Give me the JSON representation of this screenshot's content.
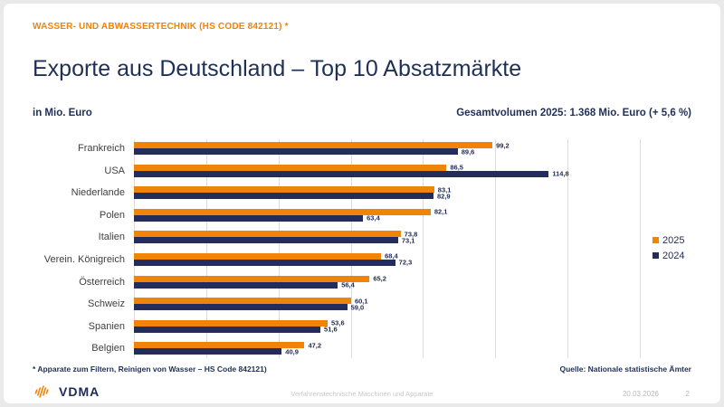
{
  "header": {
    "kicker": "WASSER- UND ABWASSERTECHNIK (HS CODE 842121) *",
    "title": "Exporte aus Deutschland – Top 10 Absatzmärkte",
    "unit_label": "in Mio. Euro",
    "total_label": "Gesamtvolumen 2025: 1.368 Mio. Euro (+ 5,6 %)"
  },
  "chart_data": {
    "type": "bar",
    "orientation": "horizontal",
    "title": "Exporte aus Deutschland – Top 10 Absatzmärkte",
    "xlabel": "Mio. Euro",
    "ylabel": "",
    "xlim": [
      0,
      140
    ],
    "gridline_interval": 20,
    "grid": true,
    "legend_position": "right",
    "categories": [
      "Frankreich",
      "USA",
      "Niederlande",
      "Polen",
      "Italien",
      "Verein. Königreich",
      "Österreich",
      "Schweiz",
      "Spanien",
      "Belgien"
    ],
    "series": [
      {
        "name": "2025",
        "color": "#F08408",
        "values": [
          99.2,
          86.5,
          83.1,
          82.1,
          73.8,
          68.4,
          65.2,
          60.1,
          53.6,
          47.2
        ],
        "labels": [
          "99,2",
          "86,5",
          "83,1",
          "82,1",
          "73,8",
          "68,4",
          "65,2",
          "60,1",
          "53,6",
          "47,2"
        ]
      },
      {
        "name": "2024",
        "color": "#232D5B",
        "values": [
          89.6,
          114.8,
          82.9,
          63.4,
          73.1,
          72.3,
          56.4,
          59.0,
          51.6,
          40.9
        ],
        "labels": [
          "89,6",
          "114,8",
          "82,9",
          "63,4",
          "73,1",
          "72,3",
          "56,4",
          "59,0",
          "51,6",
          "40,9"
        ]
      }
    ]
  },
  "legend": [
    {
      "label": "2025",
      "color": "#F08408"
    },
    {
      "label": "2024",
      "color": "#232D5B"
    }
  ],
  "footer": {
    "footnote": "* Apparate zum Filtern, Reinigen von Wasser – HS Code 842121)",
    "source": "Quelle: Nationale statistische Ämter",
    "center_text": "Verfahrenstechnische Maschinen und Apparate",
    "date": "20.03.2026",
    "page": "2"
  },
  "logo": {
    "text": "VDMA",
    "icon": "vdma-waves-icon"
  },
  "theme": {
    "accent_orange": "#F08408",
    "navy": "#1F3056",
    "grid_color": "#dcdcdc"
  }
}
